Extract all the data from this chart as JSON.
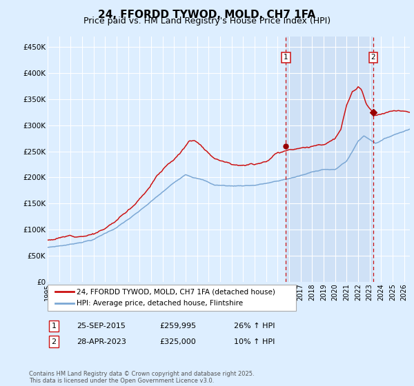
{
  "title": "24, FFORDD TYWOD, MOLD, CH7 1FA",
  "subtitle": "Price paid vs. HM Land Registry's House Price Index (HPI)",
  "title_fontsize": 11,
  "subtitle_fontsize": 9,
  "ylabel_ticks": [
    "£0",
    "£50K",
    "£100K",
    "£150K",
    "£200K",
    "£250K",
    "£300K",
    "£350K",
    "£400K",
    "£450K"
  ],
  "ylabel_values": [
    0,
    50000,
    100000,
    150000,
    200000,
    250000,
    300000,
    350000,
    400000,
    450000
  ],
  "ylim": [
    0,
    470000
  ],
  "xlim_start": 1995.0,
  "xlim_end": 2026.5,
  "xtick_years": [
    1995,
    1996,
    1997,
    1998,
    1999,
    2000,
    2001,
    2002,
    2003,
    2004,
    2005,
    2006,
    2007,
    2008,
    2009,
    2010,
    2011,
    2012,
    2013,
    2014,
    2015,
    2016,
    2017,
    2018,
    2019,
    2020,
    2021,
    2022,
    2023,
    2024,
    2025,
    2026
  ],
  "hpi_color": "#7ba7d4",
  "price_color": "#cc1111",
  "marker_color": "#990000",
  "grid_color": "#ffffff",
  "bg_color": "#ddeeff",
  "plot_bg": "#ddeeff",
  "shade_color": "#c5d8f0",
  "sale1_date": "25-SEP-2015",
  "sale1_price": 259995,
  "sale1_hpi": "26% ↑ HPI",
  "sale1_year": 2015.73,
  "sale2_date": "28-APR-2023",
  "sale2_price": 325000,
  "sale2_hpi": "10% ↑ HPI",
  "sale2_year": 2023.32,
  "legend_line1": "24, FFORDD TYWOD, MOLD, CH7 1FA (detached house)",
  "legend_line2": "HPI: Average price, detached house, Flintshire",
  "footer": "Contains HM Land Registry data © Crown copyright and database right 2025.\nThis data is licensed under the Open Government Licence v3.0.",
  "annotation1_label": "1",
  "annotation2_label": "2",
  "vline_color": "#cc1111",
  "vline_style": "--",
  "ann_y": 430000
}
